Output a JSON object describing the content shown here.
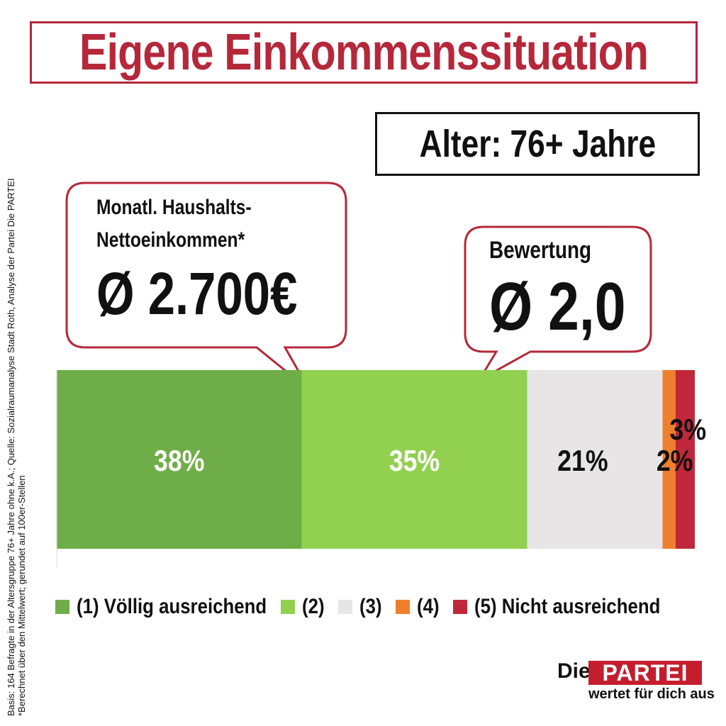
{
  "header": {
    "title": "Eigene Einkommenssituation",
    "subtitle": "Alter: 76+ Jahre"
  },
  "bubbles": {
    "income": {
      "label_line1": "Monatl. Haushalts-",
      "label_line2": "Nettoeinkommen*",
      "value": "Ø 2.700€"
    },
    "rating": {
      "label": "Bewertung",
      "value": "Ø 2,0"
    }
  },
  "footnote": {
    "line1": "Basis: 164 Befragte in der Altersgruppe 76+ Jahre ohne k.A.; Quelle: Sozialraumanalyse Stadt Roth, Analyse der Partei Die PARTEI",
    "line2": "*Berechnet über den Mittelwert; gerundet auf 100er-Stellen"
  },
  "logo": {
    "die": "Die",
    "partei": "PARTEI",
    "tagline": "wertet für dich aus"
  },
  "colors": {
    "brand_red": "#b5283a",
    "outline_dark": "#111111"
  },
  "chart_data": {
    "type": "bar",
    "orientation": "horizontal-stacked",
    "unit": "%",
    "categories": [
      "(1) Völlig ausreichend",
      "(2)",
      "(3)",
      "(4)",
      "(5) Nicht ausreichend"
    ],
    "values": [
      38,
      35,
      21,
      2,
      3
    ],
    "labels": [
      "38%",
      "35%",
      "21%",
      "2%",
      "3%"
    ],
    "colors": [
      "#6fad48",
      "#92d050",
      "#e7e5e6",
      "#ee7f2d",
      "#c0283a"
    ],
    "label_colors": [
      "#ffffff",
      "#ffffff",
      "#111111",
      "#111111",
      "#111111"
    ],
    "legend_position": "bottom",
    "grid": false
  }
}
